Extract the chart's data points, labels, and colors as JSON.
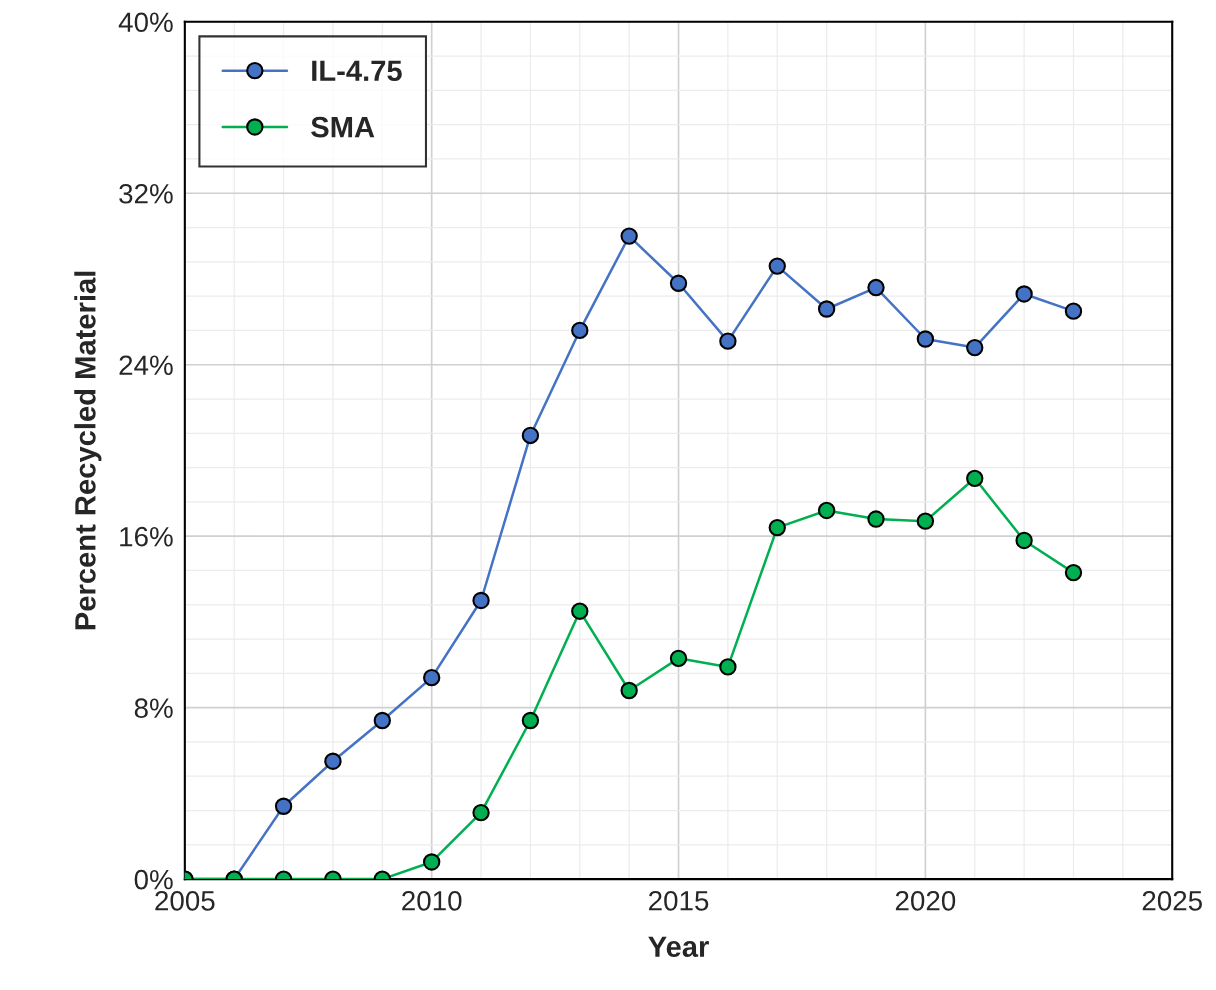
{
  "chart_data": {
    "type": "line",
    "xlabel": "Year",
    "ylabel": "Percent Recycled Material",
    "x": [
      2005,
      2006,
      2007,
      2008,
      2009,
      2010,
      2011,
      2012,
      2013,
      2014,
      2015,
      2016,
      2017,
      2018,
      2019,
      2020,
      2021,
      2022,
      2023
    ],
    "series": [
      {
        "name": "IL-4.75",
        "color": "#4472c4",
        "values": [
          0,
          0,
          3.4,
          5.5,
          7.4,
          9.4,
          13.0,
          20.7,
          25.6,
          30.0,
          27.8,
          25.1,
          28.6,
          26.6,
          27.6,
          25.2,
          24.8,
          27.3,
          26.5
        ]
      },
      {
        "name": "SMA",
        "color": "#00b050",
        "values": [
          0,
          0,
          0,
          0,
          0,
          0.8,
          3.1,
          7.4,
          12.5,
          8.8,
          10.3,
          9.9,
          16.4,
          17.2,
          16.8,
          16.7,
          18.7,
          15.8,
          14.3
        ]
      }
    ],
    "xlim": [
      2005,
      2025
    ],
    "xticks": [
      2005,
      2010,
      2015,
      2020,
      2025
    ],
    "ylim": [
      0,
      40
    ],
    "yticks": [
      {
        "value": 0,
        "label": "0%"
      },
      {
        "value": 8,
        "label": "8%"
      },
      {
        "value": 16,
        "label": "16%"
      },
      {
        "value": 24,
        "label": "24%"
      },
      {
        "value": 32,
        "label": "32%"
      },
      {
        "value": 40,
        "label": "40%"
      }
    ],
    "grid": true,
    "legend": "top left",
    "marker": "circle",
    "line_style": "solid"
  }
}
